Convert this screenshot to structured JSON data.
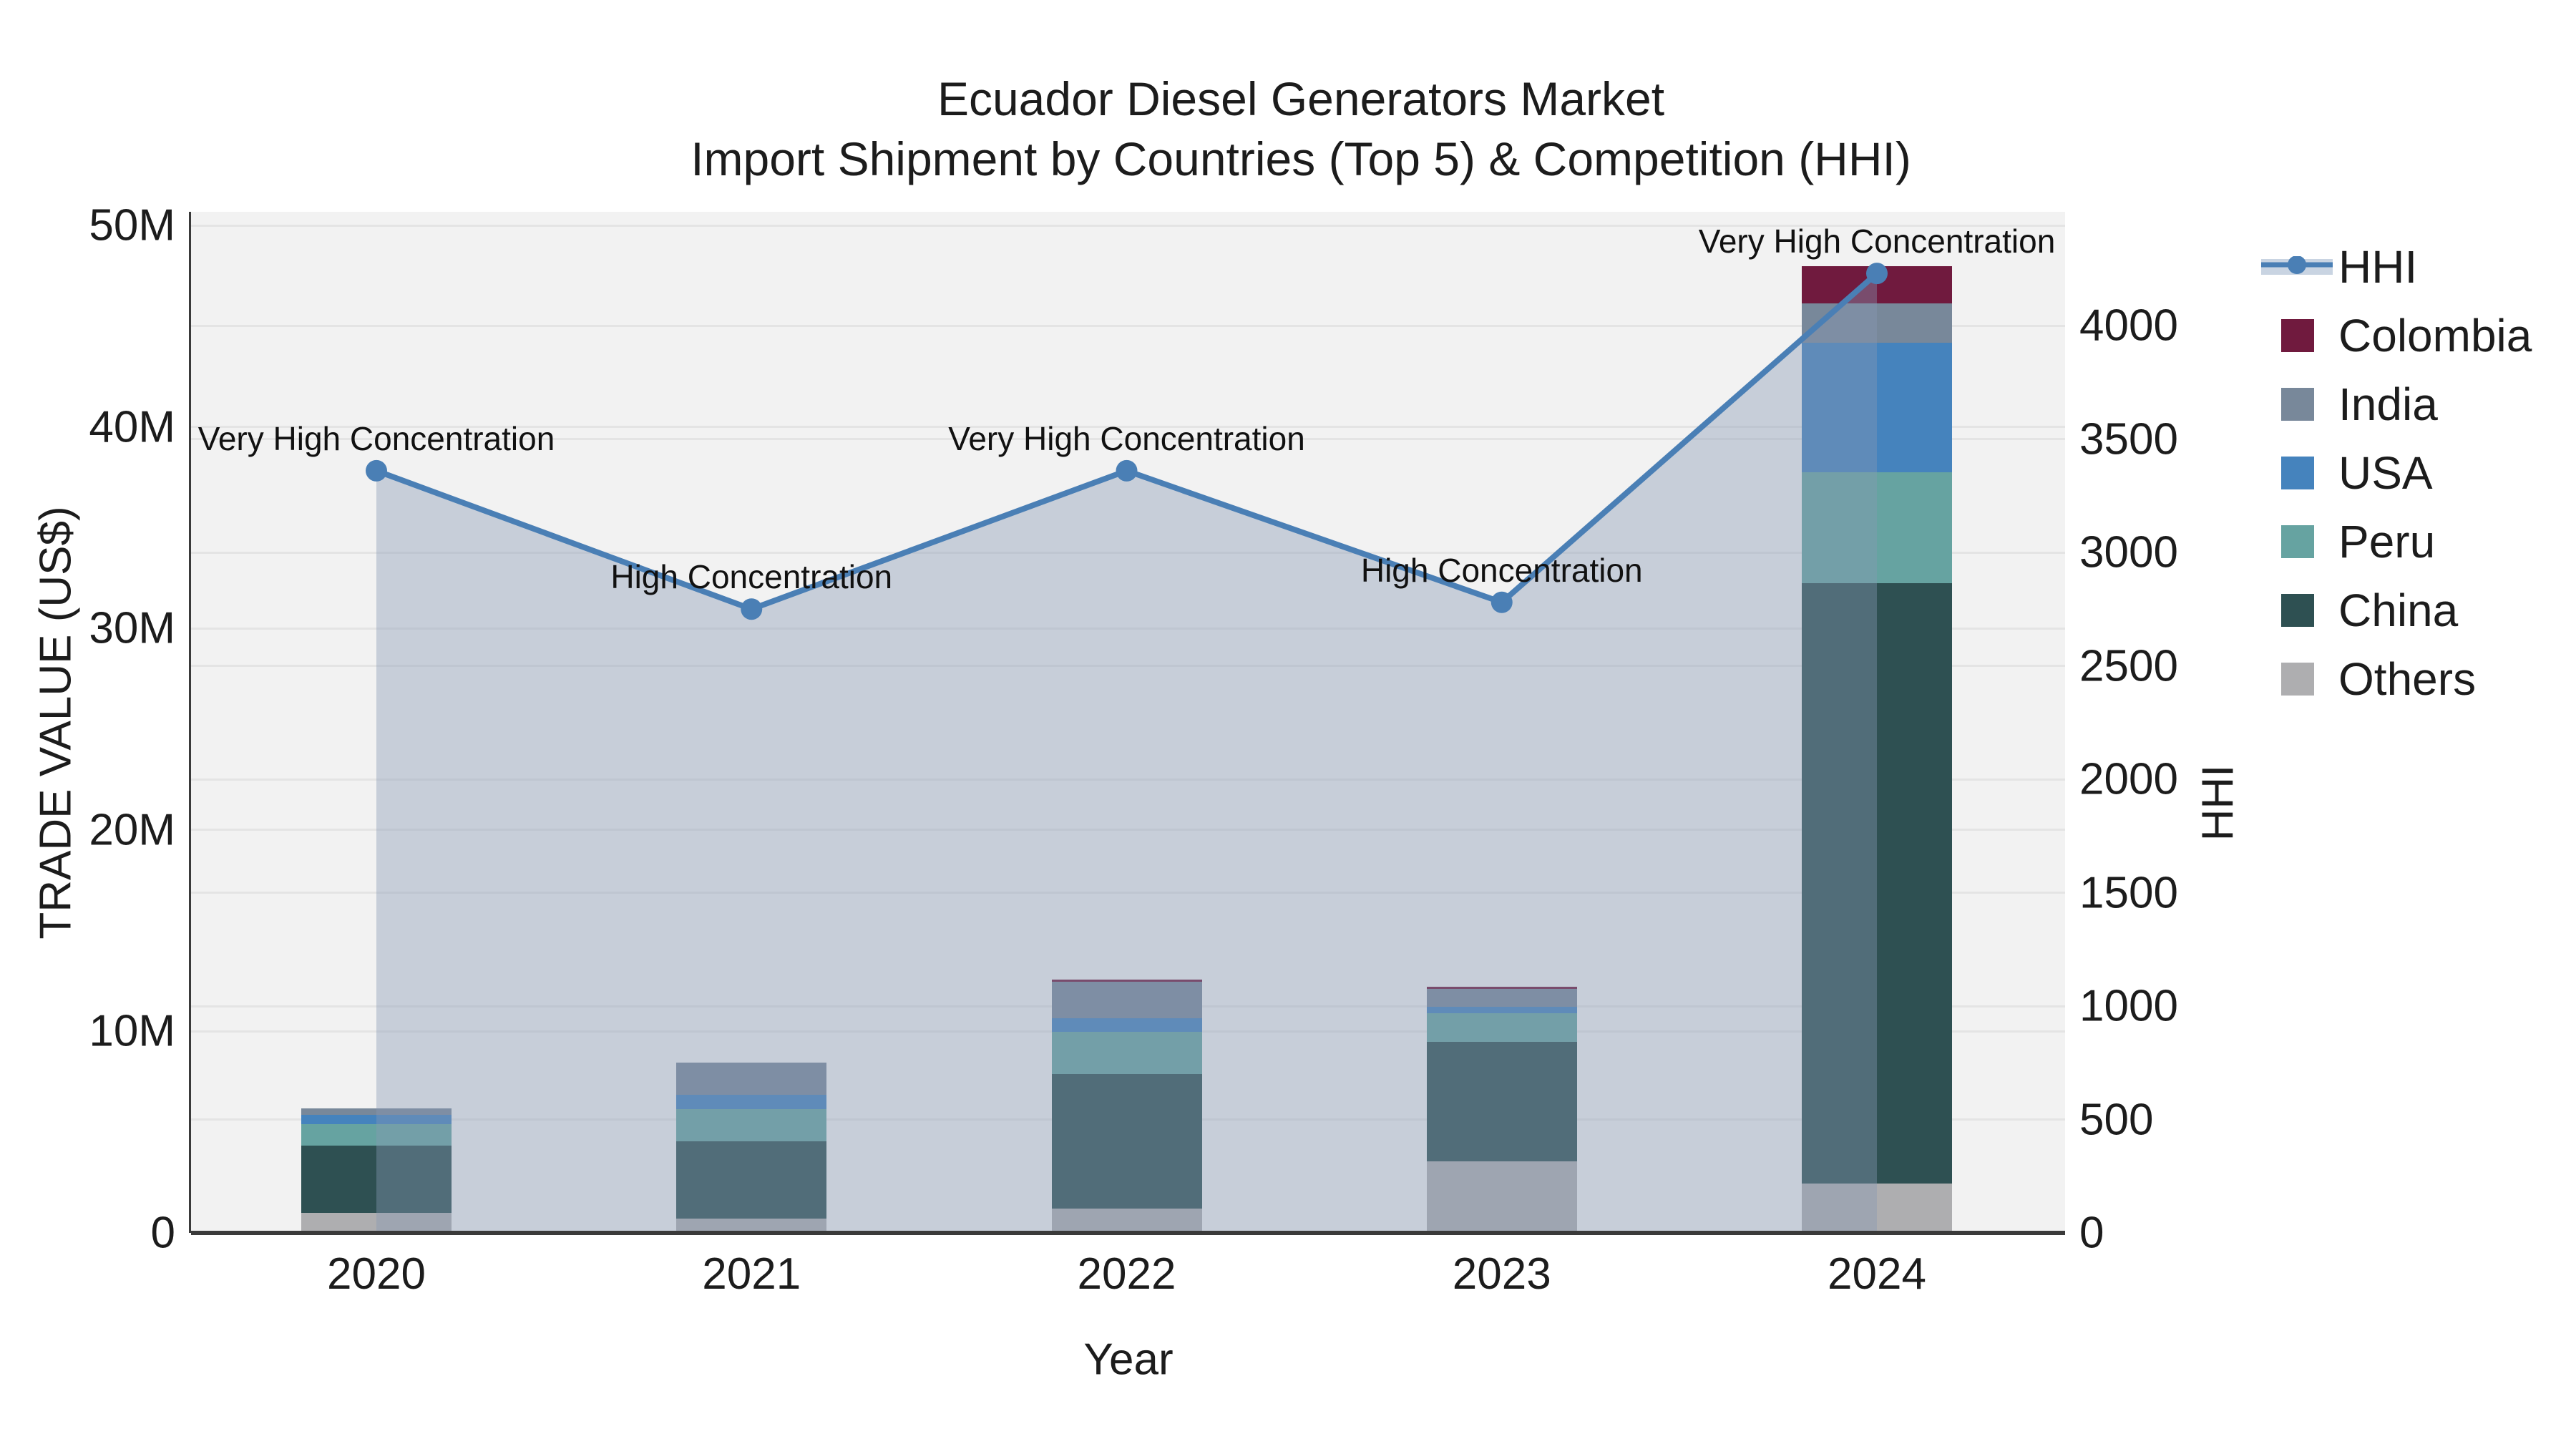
{
  "title": {
    "line1": "Ecuador Diesel Generators Market",
    "line2": "Import Shipment by Countries (Top 5) & Competition (HHI)"
  },
  "axes": {
    "x_title": "Year",
    "y_left_title": "TRADE VALUE (US$)",
    "y_right_title": "HHI",
    "left_ticks": [
      {
        "label": "0",
        "value": 0
      },
      {
        "label": "10M",
        "value": 10
      },
      {
        "label": "20M",
        "value": 20
      },
      {
        "label": "30M",
        "value": 30
      },
      {
        "label": "40M",
        "value": 40
      },
      {
        "label": "50M",
        "value": 50
      }
    ],
    "right_ticks": [
      {
        "label": "0",
        "value": 0
      },
      {
        "label": "500",
        "value": 500
      },
      {
        "label": "1000",
        "value": 1000
      },
      {
        "label": "1500",
        "value": 1500
      },
      {
        "label": "2000",
        "value": 2000
      },
      {
        "label": "2500",
        "value": 2500
      },
      {
        "label": "3000",
        "value": 3000
      },
      {
        "label": "3500",
        "value": 3500
      },
      {
        "label": "4000",
        "value": 4000
      }
    ]
  },
  "colors": {
    "hhi_line": "#4A7FB5",
    "hhi_area_swatch": "#C9D4E2",
    "area_fill": "rgba(135,152,180,0.40)",
    "colombia": "#701A3E",
    "india": "#78889A",
    "usa": "#4583BD",
    "peru": "#66A3A1",
    "china": "#2E5052",
    "others": "#AEAEB0",
    "plot_bg": "#F2F2F2",
    "gridline": "#E4E4E4",
    "axis_line": "#3A3A3A"
  },
  "legend": [
    {
      "label": "HHI",
      "type": "line",
      "color": "#4A7FB5"
    },
    {
      "label": "Colombia",
      "type": "square",
      "color": "#701A3E"
    },
    {
      "label": "India",
      "type": "square",
      "color": "#78889A"
    },
    {
      "label": "USA",
      "type": "square",
      "color": "#4583BD"
    },
    {
      "label": "Peru",
      "type": "square",
      "color": "#66A3A1"
    },
    {
      "label": "China",
      "type": "square",
      "color": "#2E5052"
    },
    {
      "label": "Others",
      "type": "square",
      "color": "#AEAEB0"
    }
  ],
  "chart_data": {
    "type": "combo-stacked-bar-line-area",
    "categories": [
      "2020",
      "2021",
      "2022",
      "2023",
      "2024"
    ],
    "bar_value_unit": "USD millions",
    "series": [
      {
        "name": "Others",
        "color": "#AEAEB0",
        "values": [
          1.0,
          0.72,
          1.2,
          3.54,
          2.44
        ]
      },
      {
        "name": "China",
        "color": "#2E5052",
        "values": [
          3.34,
          3.82,
          6.69,
          5.94,
          29.8
        ]
      },
      {
        "name": "Peru",
        "color": "#66A3A1",
        "values": [
          1.07,
          1.6,
          2.1,
          1.44,
          5.5
        ]
      },
      {
        "name": "USA",
        "color": "#4583BD",
        "values": [
          0.45,
          0.71,
          0.65,
          0.31,
          6.45
        ]
      },
      {
        "name": "India",
        "color": "#78889A",
        "values": [
          0.32,
          1.62,
          1.81,
          0.89,
          1.93
        ]
      },
      {
        "name": "Colombia",
        "color": "#701A3E",
        "values": [
          0,
          0,
          0.12,
          0.1,
          1.86
        ]
      }
    ],
    "line": {
      "name": "HHI",
      "axis": "right",
      "color": "#4A7FB5",
      "values": [
        3360,
        2750,
        3360,
        2780,
        4230
      ],
      "area_fill": true
    },
    "annotations": [
      "Very High Concentration",
      "High Concentration",
      "Very High Concentration",
      "High Concentration",
      "Very High Concentration"
    ],
    "title": "Ecuador Diesel Generators Market\nImport Shipment by Countries (Top 5) & Competition (HHI)",
    "xlabel": "Year",
    "ylabel_left": "TRADE VALUE (US$)",
    "ylabel_right": "HHI",
    "ylim_left": [
      0,
      50.7
    ],
    "ylim_right": [
      0,
      4505
    ],
    "grid": true,
    "legend_position": "right"
  }
}
